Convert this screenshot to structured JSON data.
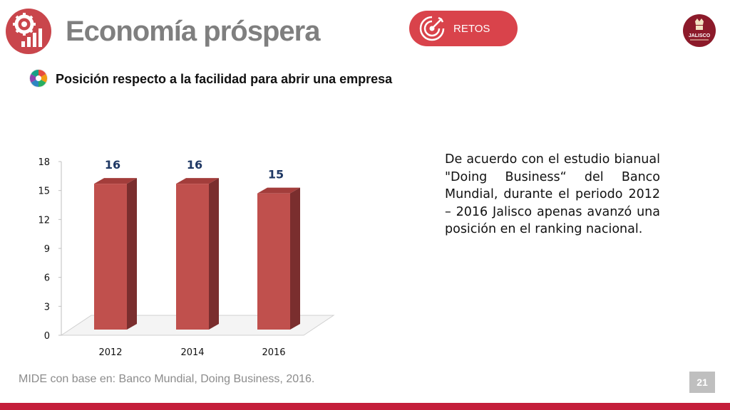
{
  "header": {
    "title": "Economía próspera",
    "retos_label": "RETOS",
    "logo_text": "JALISCO"
  },
  "subtitle": "Posición respecto a la facilidad para abrir una empresa",
  "description": "De acuerdo con el estudio bianual \"Doing Business“ del Banco Mundial, durante el periodo 2012 – 2016 Jalisco apenas avanzó una posición en el ranking nacional.",
  "source": "MIDE con base en: Banco Mundial, Doing Business,  2016.",
  "page_number": "21",
  "colors": {
    "accent": "#d9434b",
    "bar_front": "#c0504d",
    "bar_side": "#7a2e2e",
    "bar_top": "#a33d3b",
    "label": "#1f3864",
    "title_gray": "#7f7f7f",
    "bottom_bar": "#c41e3a"
  },
  "icons": {
    "title": "gear-chart-icon",
    "retos": "target-icon",
    "subtitle": "color-wheel-icon",
    "logo": "jalisco-logo"
  },
  "chart_data": {
    "type": "bar",
    "title": "",
    "xlabel": "",
    "ylabel": "",
    "categories": [
      "2012",
      "2014",
      "2016"
    ],
    "values": [
      16,
      16,
      15
    ],
    "data_labels": [
      "16",
      "16",
      "15"
    ],
    "ylim": [
      0,
      18
    ],
    "yticks": [
      0,
      3,
      6,
      9,
      12,
      15,
      18
    ],
    "style": "3d-column"
  }
}
